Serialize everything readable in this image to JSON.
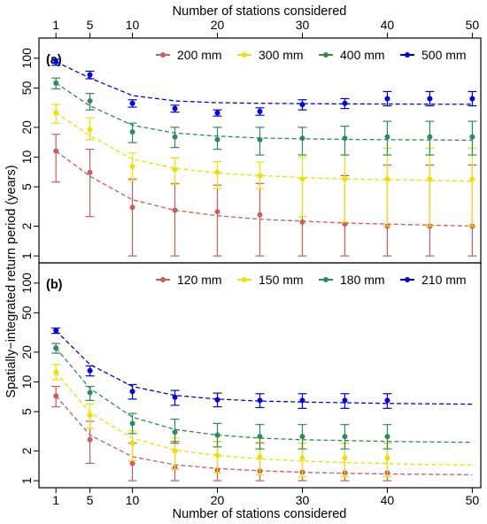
{
  "figure": {
    "top_axis_label": "Number of stations considered",
    "bottom_axis_label": "Number of stations considered",
    "y_axis_label": "Spatially−integrated return period (years)",
    "x_ticks": [
      1,
      5,
      10,
      20,
      30,
      40,
      50
    ],
    "y_ticks": [
      1,
      2,
      5,
      10,
      20,
      50,
      100
    ],
    "y_scale": "log",
    "x_range": [
      -1,
      51
    ],
    "y_range": [
      0.85,
      160
    ],
    "colors": {
      "red": "#cd5c5c",
      "yellow": "#f0e000",
      "green": "#2e8b57",
      "blue": "#0000ee"
    }
  },
  "chart_data": [
    {
      "type": "scatter",
      "panel_label": "(a)",
      "legend_position": "top-right",
      "x": [
        1,
        5,
        10,
        15,
        20,
        25,
        30,
        35,
        40,
        45,
        50
      ],
      "series": [
        {
          "name": "200 mm",
          "color": "#cd5c5c",
          "values": [
            11.5,
            7.0,
            3.1,
            2.9,
            2.8,
            2.6,
            2.2,
            2.1,
            2.0,
            2.0,
            2.0
          ],
          "lower": [
            5.6,
            2.5,
            1.0,
            1.0,
            1.0,
            1.0,
            1.0,
            1.0,
            1.0,
            1.0,
            1.0
          ],
          "upper": [
            17,
            12,
            6,
            5.4,
            5.2,
            5.4,
            6.2,
            6.5,
            8.3,
            8.3,
            8.3
          ],
          "fit": [
            11.5,
            6.4,
            3.7,
            2.9,
            2.55,
            2.35,
            2.25,
            2.15,
            2.1,
            2.05,
            2.0
          ]
        },
        {
          "name": "300 mm",
          "color": "#f0e000",
          "values": [
            28,
            19,
            8,
            7.5,
            7,
            6.5,
            6,
            6,
            6,
            6,
            6
          ],
          "lower": [
            22,
            15,
            5.8,
            5.3,
            4.8,
            4.8,
            2.5,
            2.2,
            2.0,
            2.0,
            2.0
          ],
          "upper": [
            34,
            25,
            11,
            9.8,
            9,
            8.9,
            10,
            10.5,
            12.3,
            12.3,
            12.3
          ],
          "fit": [
            28,
            16.5,
            9.5,
            7.7,
            6.9,
            6.5,
            6.2,
            6.0,
            5.9,
            5.8,
            5.7
          ]
        },
        {
          "name": "400 mm",
          "color": "#2e8b57",
          "values": [
            56,
            37,
            18,
            16,
            15,
            15,
            15.5,
            15.5,
            16,
            16,
            16
          ],
          "lower": [
            49,
            30,
            14,
            12.5,
            12,
            10.5,
            10.5,
            10.5,
            10.5,
            10.5,
            10.5
          ],
          "upper": [
            63,
            44,
            22,
            20,
            20,
            20,
            20,
            20.5,
            23,
            23,
            23
          ],
          "fit": [
            56,
            33,
            21,
            17.5,
            16.3,
            15.6,
            15.3,
            15.1,
            15.0,
            14.9,
            14.8
          ]
        },
        {
          "name": "500 mm",
          "color": "#0000ee",
          "values": [
            92,
            68,
            35,
            31,
            28,
            29,
            34,
            35,
            39,
            39,
            39
          ],
          "lower": [
            85,
            62,
            32,
            28.5,
            26,
            26.5,
            30,
            31,
            33,
            33,
            33
          ],
          "upper": [
            98,
            74,
            38,
            33.5,
            30,
            31.5,
            38,
            39,
            46,
            46,
            46
          ],
          "fit": [
            92,
            63,
            42,
            37,
            35.5,
            35,
            34.7,
            34.5,
            34.4,
            34.3,
            34.2
          ]
        }
      ]
    },
    {
      "type": "scatter",
      "panel_label": "(b)",
      "legend_position": "top-right",
      "x": [
        1,
        5,
        10,
        15,
        20,
        25,
        30,
        35,
        40,
        45,
        50
      ],
      "series": [
        {
          "name": "120 mm",
          "color": "#cd5c5c",
          "values": [
            7.2,
            2.6,
            1.5,
            1.35,
            1.28,
            1.25,
            1.22,
            1.2,
            1.2,
            null,
            null
          ],
          "lower": [
            5.6,
            1.5,
            1.0,
            1.0,
            1.0,
            1.0,
            1.0,
            1.0,
            1.0,
            null,
            null
          ],
          "upper": [
            9.0,
            4.0,
            2.4,
            2.5,
            2.5,
            2.4,
            2.4,
            2.4,
            2.4,
            null,
            null
          ],
          "fit": [
            7.2,
            2.9,
            1.75,
            1.45,
            1.33,
            1.26,
            1.22,
            1.19,
            1.17,
            1.16,
            1.15
          ]
        },
        {
          "name": "150 mm",
          "color": "#f0e000",
          "values": [
            12.5,
            4.6,
            2.4,
            2.0,
            1.8,
            1.75,
            1.7,
            1.7,
            1.7,
            null,
            null
          ],
          "lower": [
            10.5,
            3.4,
            1.6,
            1.3,
            1.2,
            1.15,
            1.1,
            1.1,
            1.1,
            null,
            null
          ],
          "upper": [
            15,
            6.0,
            3.2,
            2.7,
            2.5,
            2.45,
            2.4,
            2.4,
            2.4,
            null,
            null
          ],
          "fit": [
            12.5,
            4.9,
            2.7,
            2.05,
            1.8,
            1.66,
            1.58,
            1.53,
            1.49,
            1.46,
            1.44
          ]
        },
        {
          "name": "180 mm",
          "color": "#2e8b57",
          "values": [
            22,
            7.8,
            3.8,
            3.1,
            2.9,
            2.8,
            2.8,
            2.8,
            2.8,
            null,
            null
          ],
          "lower": [
            19.5,
            6.5,
            3.0,
            2.4,
            2.2,
            2.1,
            2.1,
            2.1,
            2.1,
            null,
            null
          ],
          "upper": [
            24.5,
            9.0,
            4.8,
            4.2,
            3.8,
            3.7,
            3.7,
            3.7,
            3.7,
            null,
            null
          ],
          "fit": [
            22,
            8.6,
            4.4,
            3.3,
            2.9,
            2.7,
            2.6,
            2.55,
            2.5,
            2.47,
            2.45
          ]
        },
        {
          "name": "210 mm",
          "color": "#0000ee",
          "values": [
            33,
            13,
            8.0,
            7.0,
            6.6,
            6.5,
            6.5,
            6.5,
            6.5,
            null,
            null
          ],
          "lower": [
            31,
            11.5,
            6.7,
            5.8,
            5.6,
            5.5,
            5.4,
            5.4,
            5.4,
            null,
            null
          ],
          "upper": [
            35,
            14.5,
            9.4,
            8.2,
            7.7,
            7.6,
            7.6,
            7.6,
            7.6,
            null,
            null
          ],
          "fit": [
            33,
            15,
            9.0,
            7.3,
            6.7,
            6.4,
            6.25,
            6.15,
            6.05,
            6.0,
            5.95
          ]
        }
      ]
    }
  ]
}
